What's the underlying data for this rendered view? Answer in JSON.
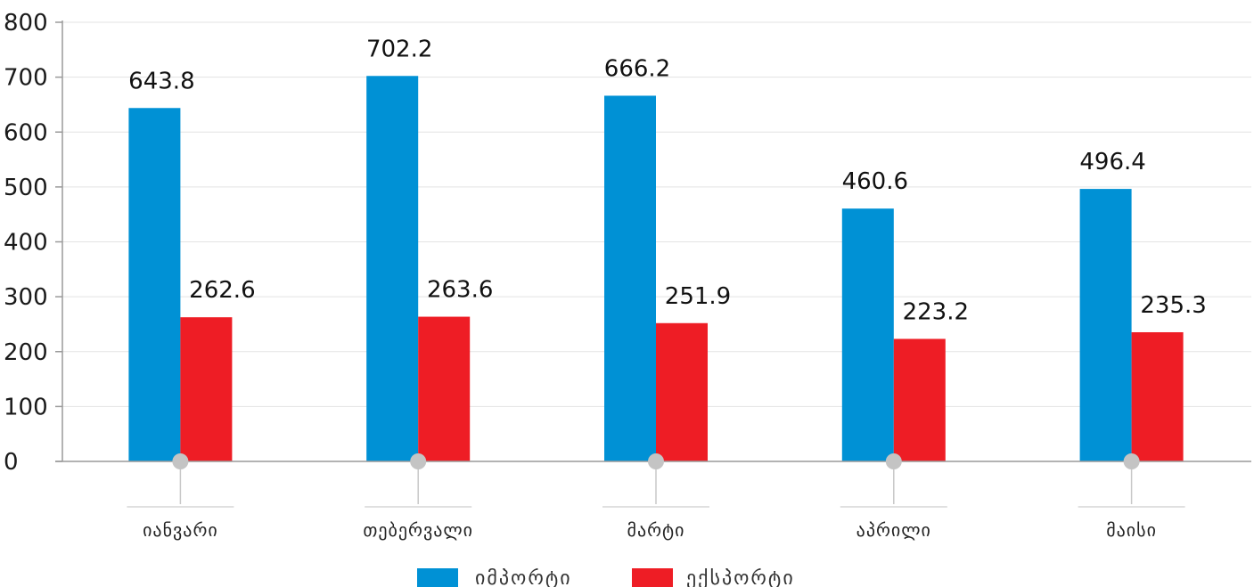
{
  "chart_data": {
    "type": "bar",
    "categories": [
      "იანვარი",
      "თებერვალი",
      "მარტი",
      "აპრილი",
      "მაისი"
    ],
    "series": [
      {
        "name": "იმპორტი",
        "values": [
          643.8,
          702.2,
          666.2,
          460.6,
          496.4
        ],
        "color": "#0091d5"
      },
      {
        "name": "ექსპორტი",
        "values": [
          262.6,
          263.6,
          251.9,
          223.2,
          235.3
        ],
        "color": "#ee1d25"
      }
    ],
    "title": "",
    "xlabel": "",
    "ylabel": "",
    "ylim": [
      0,
      800
    ],
    "yticks": [
      0,
      100,
      200,
      300,
      400,
      500,
      600,
      700,
      800
    ],
    "grid": true,
    "legend": "bottom-center",
    "data_labels": true
  }
}
